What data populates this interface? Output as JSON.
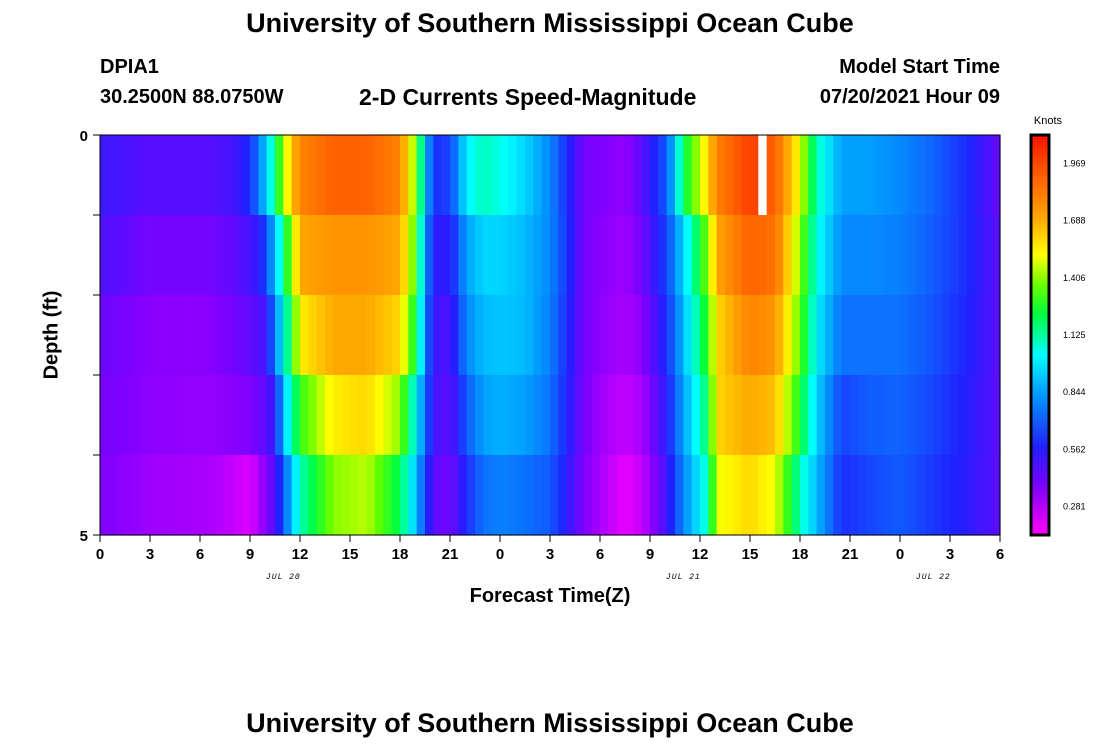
{
  "header": {
    "title": "University of Southern Mississippi Ocean Cube",
    "station": "DPIA1",
    "coords": "30.2500N  88.0750W",
    "subtitle": "2-D Currents Speed-Magnitude",
    "model_start_label": "Model Start Time",
    "model_start_value": "07/20/2021 Hour 09"
  },
  "footer": {
    "title": "University of Southern Mississippi Ocean Cube"
  },
  "chart_data": {
    "type": "heatmap",
    "title": "2-D Currents Speed-Magnitude",
    "xlabel": "Forecast Time(Z)",
    "ylabel": "Depth (ft)",
    "x_ticks": [
      "0",
      "3",
      "6",
      "9",
      "12",
      "15",
      "18",
      "21",
      "0",
      "3",
      "6",
      "9",
      "12",
      "15",
      "18",
      "21",
      "0",
      "3",
      "6"
    ],
    "x_hours": [
      0,
      54
    ],
    "date_labels": [
      {
        "label": "JUL 20",
        "hour": 11
      },
      {
        "label": "JUL 21",
        "hour": 35
      },
      {
        "label": "JUL 22",
        "hour": 50
      }
    ],
    "y_ticks": [
      "0",
      "5"
    ],
    "ylim": [
      0,
      5
    ],
    "colorbar": {
      "label": "Knots",
      "ticks": [
        "1.969",
        "1.688",
        "1.406",
        "1.125",
        "0.844",
        "0.562",
        "0.281"
      ],
      "range": [
        0.14,
        2.11
      ]
    },
    "rows": 5,
    "knots": [
      {
        "h": 0,
        "v": [
          0.52,
          0.48,
          0.42,
          0.4,
          0.38
        ]
      },
      {
        "h": 3,
        "v": [
          0.46,
          0.4,
          0.36,
          0.35,
          0.32
        ]
      },
      {
        "h": 6.5,
        "v": [
          0.46,
          0.4,
          0.36,
          0.34,
          0.3
        ]
      },
      {
        "h": 8,
        "v": [
          0.5,
          0.44,
          0.4,
          0.36,
          0.25
        ]
      },
      {
        "h": 9,
        "v": [
          0.6,
          0.5,
          0.44,
          0.38,
          0.2
        ]
      },
      {
        "h": 9.6,
        "v": [
          0.8,
          0.55,
          0.48,
          0.42,
          0.3
        ]
      },
      {
        "h": 10,
        "v": [
          0.95,
          0.7,
          0.5,
          0.46,
          0.4
        ]
      },
      {
        "h": 10.5,
        "v": [
          1.15,
          0.9,
          0.8,
          0.55,
          0.45
        ]
      },
      {
        "h": 11,
        "v": [
          1.45,
          1.15,
          1.0,
          0.9,
          0.7
        ]
      },
      {
        "h": 12,
        "v": [
          1.8,
          1.7,
          1.55,
          1.3,
          1.1
        ]
      },
      {
        "h": 14,
        "v": [
          1.9,
          1.75,
          1.7,
          1.55,
          1.4
        ]
      },
      {
        "h": 16,
        "v": [
          1.9,
          1.75,
          1.7,
          1.6,
          1.45
        ]
      },
      {
        "h": 18,
        "v": [
          1.8,
          1.7,
          1.6,
          1.4,
          1.2
        ]
      },
      {
        "h": 19,
        "v": [
          1.35,
          1.3,
          1.2,
          1.0,
          0.9
        ]
      },
      {
        "h": 19.5,
        "v": [
          0.95,
          0.85,
          0.8,
          0.75,
          0.65
        ]
      },
      {
        "h": 20,
        "v": [
          0.6,
          0.55,
          0.52,
          0.5,
          0.45
        ]
      },
      {
        "h": 21,
        "v": [
          0.65,
          0.55,
          0.48,
          0.45,
          0.4
        ]
      },
      {
        "h": 22,
        "v": [
          1.0,
          0.85,
          0.8,
          0.7,
          0.6
        ]
      },
      {
        "h": 23,
        "v": [
          1.1,
          0.95,
          0.9,
          0.85,
          0.75
        ]
      },
      {
        "h": 24,
        "v": [
          1.05,
          0.95,
          0.92,
          0.88,
          0.78
        ]
      },
      {
        "h": 25.5,
        "v": [
          0.95,
          0.9,
          0.9,
          0.85,
          0.75
        ]
      },
      {
        "h": 27,
        "v": [
          0.8,
          0.8,
          0.78,
          0.75,
          0.7
        ]
      },
      {
        "h": 28,
        "v": [
          0.6,
          0.62,
          0.6,
          0.58,
          0.55
        ]
      },
      {
        "h": 29,
        "v": [
          0.4,
          0.4,
          0.4,
          0.4,
          0.38
        ]
      },
      {
        "h": 30,
        "v": [
          0.38,
          0.36,
          0.35,
          0.32,
          0.3
        ]
      },
      {
        "h": 31.5,
        "v": [
          0.34,
          0.32,
          0.3,
          0.25,
          0.18
        ]
      },
      {
        "h": 32.5,
        "v": [
          0.45,
          0.4,
          0.35,
          0.3,
          0.25
        ]
      },
      {
        "h": 34,
        "v": [
          0.7,
          0.65,
          0.6,
          0.55,
          0.5
        ]
      },
      {
        "h": 35,
        "v": [
          1.2,
          0.95,
          0.9,
          0.85,
          0.8
        ]
      },
      {
        "h": 36.5,
        "v": [
          1.6,
          1.4,
          1.3,
          1.2,
          1.1
        ]
      },
      {
        "h": 37,
        "v": [
          1.8,
          1.7,
          1.6,
          1.6,
          1.5
        ]
      },
      {
        "h": 39,
        "v": [
          2.0,
          1.9,
          1.8,
          1.7,
          1.6
        ]
      },
      {
        "h": 40.5,
        "v": [
          1.9,
          1.85,
          1.75,
          1.65,
          1.5
        ]
      },
      {
        "h": 42,
        "v": [
          1.5,
          1.4,
          1.35,
          1.25,
          1.1
        ]
      },
      {
        "h": 43,
        "v": [
          1.1,
          1.05,
          1.0,
          0.95,
          0.9
        ]
      },
      {
        "h": 44.5,
        "v": [
          0.85,
          0.8,
          0.75,
          0.65,
          0.6
        ]
      },
      {
        "h": 46,
        "v": [
          0.85,
          0.8,
          0.75,
          0.7,
          0.65
        ]
      },
      {
        "h": 48,
        "v": [
          0.8,
          0.78,
          0.75,
          0.72,
          0.7
        ]
      },
      {
        "h": 50,
        "v": [
          0.72,
          0.7,
          0.68,
          0.65,
          0.62
        ]
      },
      {
        "h": 52,
        "v": [
          0.6,
          0.6,
          0.58,
          0.56,
          0.55
        ]
      },
      {
        "h": 54,
        "v": [
          0.42,
          0.45,
          0.45,
          0.45,
          0.45
        ]
      }
    ],
    "missing_cell": {
      "hour": 39.5,
      "row": 0
    }
  }
}
